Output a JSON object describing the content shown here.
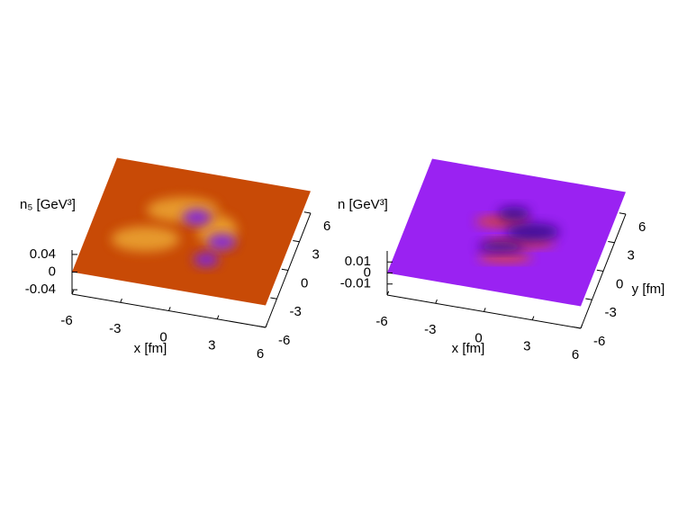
{
  "chart_data": [
    {
      "type": "surface3d",
      "zlabel": "n₅ [GeV³]",
      "xlabel": "x [fm]",
      "xlim": [
        -6,
        6
      ],
      "ylim": [
        -6,
        6
      ],
      "zlim": [
        -0.05,
        0.05
      ],
      "xticks": [
        -6,
        -3,
        0,
        3,
        6
      ],
      "yticks": [
        -6,
        -3,
        0,
        3,
        6
      ],
      "zticks": [
        -0.04,
        0,
        0.04
      ],
      "color": "#c84a06",
      "high_color": "#eaa230",
      "low_color": "#7a22e8"
    },
    {
      "type": "surface3d",
      "zlabel": "n [GeV³]",
      "xlabel": "x [fm]",
      "ylabel": "y [fm]",
      "xlim": [
        -6,
        6
      ],
      "ylim": [
        -6,
        6
      ],
      "zlim": [
        -0.02,
        0.02
      ],
      "xticks": [
        -6,
        -3,
        0,
        3,
        6
      ],
      "yticks": [
        -6,
        -3,
        0,
        3,
        6
      ],
      "zticks": [
        -0.01,
        0,
        0.01
      ],
      "color": "#9a22f2",
      "high_color": "#e0481a",
      "low_color": "#3a0a8a"
    }
  ]
}
